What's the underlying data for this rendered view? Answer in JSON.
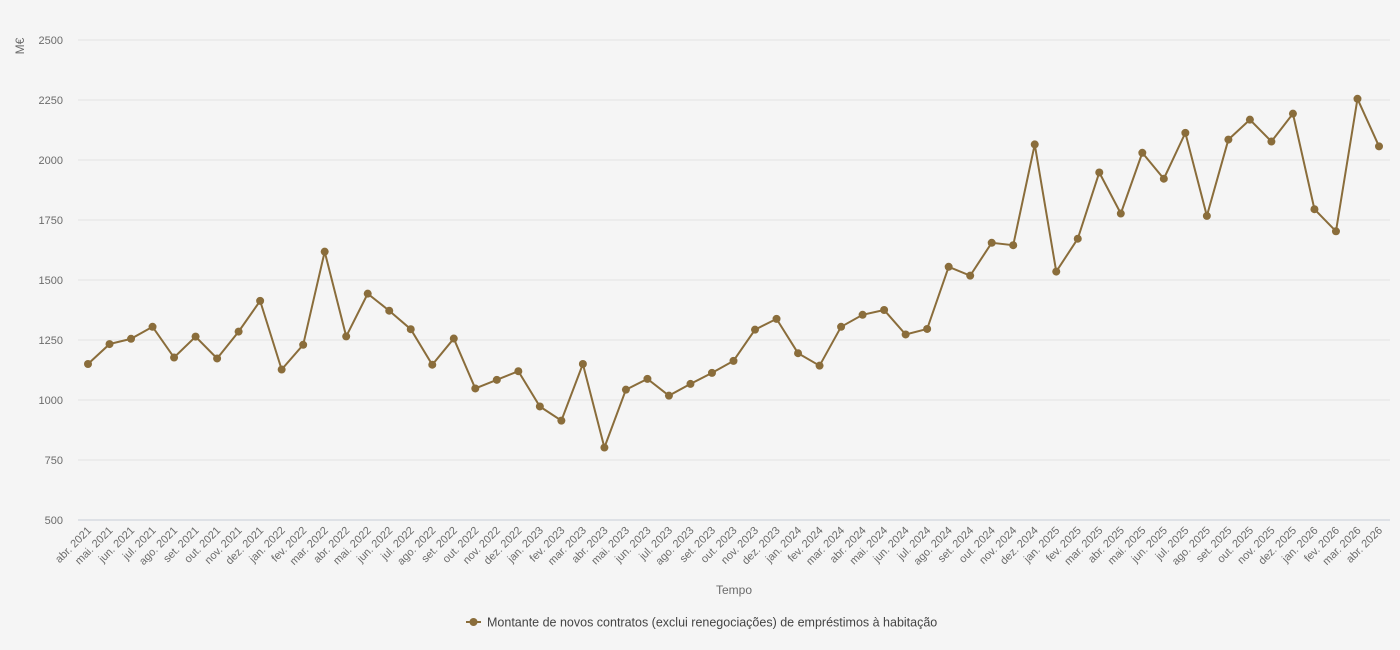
{
  "colors": {
    "series": "#8a6d3b",
    "background": "#f5f5f5",
    "grid": "#e3e3e3"
  },
  "chart_data": {
    "type": "line",
    "xlabel": "Tempo",
    "ylabel": "M€",
    "ylim": [
      500,
      2500
    ],
    "yticks": [
      500,
      750,
      1000,
      1250,
      1500,
      1750,
      2000,
      2250,
      2500
    ],
    "grid": true,
    "legend_position": "bottom-center",
    "categories": [
      "abr. 2021",
      "mai. 2021",
      "jun. 2021",
      "jul. 2021",
      "ago. 2021",
      "set. 2021",
      "out. 2021",
      "nov. 2021",
      "dez. 2021",
      "jan. 2022",
      "fev. 2022",
      "mar. 2022",
      "abr. 2022",
      "mai. 2022",
      "jun. 2022",
      "jul. 2022",
      "ago. 2022",
      "set. 2022",
      "out. 2022",
      "nov. 2022",
      "dez. 2022",
      "jan. 2023",
      "fev. 2023",
      "mar. 2023",
      "abr. 2023",
      "mai. 2023",
      "jun. 2023",
      "jul. 2023",
      "ago. 2023",
      "set. 2023",
      "out. 2023",
      "nov. 2023",
      "dez. 2023",
      "jan. 2024",
      "fev. 2024",
      "mar. 2024",
      "abr. 2024",
      "mai. 2024",
      "jun. 2024",
      "jul. 2024",
      "ago. 2024",
      "set. 2024",
      "out. 2024",
      "nov. 2024",
      "dez. 2024",
      "jan. 2025",
      "fev. 2025",
      "mar. 2025",
      "abr. 2025",
      "mai. 2025",
      "jun. 2025",
      "jul. 2025",
      "ago. 2025",
      "set. 2025",
      "out. 2025",
      "nov. 2025",
      "dez. 2025",
      "jan. 2026",
      "fev. 2026",
      "mar. 2026",
      "abr. 2026"
    ],
    "series": [
      {
        "name": "Montante de novos contratos (exclui renegociações) de empréstimos à habitação",
        "values": [
          1150,
          1233,
          1255,
          1305,
          1177,
          1264,
          1173,
          1285,
          1413,
          1127,
          1230,
          1618,
          1265,
          1443,
          1372,
          1295,
          1147,
          1256,
          1048,
          1084,
          1120,
          973,
          914,
          1150,
          802,
          1043,
          1088,
          1018,
          1067,
          1113,
          1163,
          1293,
          1338,
          1195,
          1143,
          1305,
          1355,
          1375,
          1273,
          1296,
          1555,
          1518,
          1655,
          1645,
          2065,
          1535,
          1672,
          1948,
          1777,
          2030,
          1922,
          2113,
          1767,
          2085,
          2168,
          2077,
          2193,
          1795,
          1703,
          2255,
          2057
        ]
      }
    ]
  }
}
